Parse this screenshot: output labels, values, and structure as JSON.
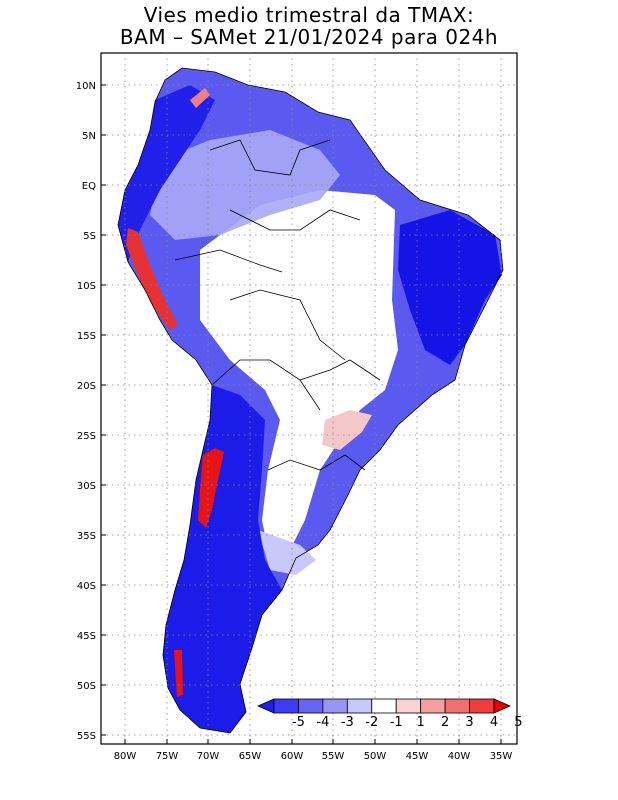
{
  "title": {
    "line1": "Vies medio trimestral da TMAX:",
    "line2": "BAM – SAMet 21/01/2024  para 024h"
  },
  "map": {
    "lon_labels": [
      "80W",
      "75W",
      "70W",
      "65W",
      "60W",
      "55W",
      "50W",
      "45W",
      "40W",
      "35W"
    ],
    "lat_labels": [
      "10N",
      "5N",
      "EQ",
      "5S",
      "10S",
      "15S",
      "20S",
      "25S",
      "30S",
      "35S",
      "40S",
      "45S",
      "50S",
      "55S"
    ],
    "lon_range": [
      -83,
      -34
    ],
    "lat_range": [
      -56,
      13
    ],
    "grid": "dotted"
  },
  "colorbar": {
    "labels": [
      "-5",
      "-4",
      "-3",
      "-2",
      "-1",
      "1",
      "2",
      "3",
      "4",
      "5"
    ],
    "colors": [
      "#1e1ef0",
      "#3c3cf5",
      "#6464f5",
      "#9696f5",
      "#c8c8fa",
      "#ffffff",
      "#fad2d2",
      "#f5a0a0",
      "#f07070",
      "#f03c3c",
      "#e60000"
    ]
  },
  "colors": {
    "strong_cold": "#1414e6",
    "cold": "#5050f0",
    "mild_cold": "#a0a0f5",
    "neutral": "#ffffff",
    "warm": "#f5a0a0",
    "hot": "#e61414",
    "border": "#000000"
  }
}
